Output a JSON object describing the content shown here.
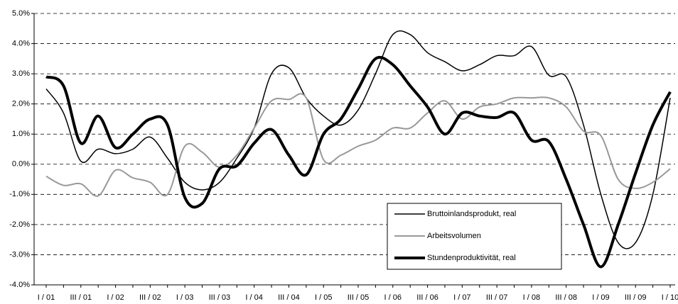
{
  "chart_data": {
    "type": "line",
    "categories": [
      "I / 01",
      null,
      "III / 01",
      null,
      "I / 02",
      null,
      "III / 02",
      null,
      "I / 03",
      null,
      "III / 03",
      null,
      "I / 04",
      null,
      "III / 04",
      null,
      "I / 05",
      null,
      "III / 05",
      null,
      "I / 06",
      null,
      "III / 06",
      null,
      "I / 07",
      null,
      "III / 07",
      null,
      "I / 08",
      null,
      "III / 08",
      null,
      "I / 09",
      null,
      "III / 09",
      null,
      "I / 10"
    ],
    "series": [
      {
        "name": "Bruttoinlandsprodukt, real",
        "color": "#000000",
        "width": 1.5,
        "values": [
          2.5,
          1.7,
          0.1,
          0.5,
          0.35,
          0.5,
          0.9,
          0.2,
          -0.6,
          -0.85,
          -0.6,
          0.2,
          1.2,
          3.0,
          3.2,
          2.2,
          1.6,
          1.3,
          1.8,
          3.0,
          4.3,
          4.3,
          3.7,
          3.4,
          3.1,
          3.3,
          3.6,
          3.6,
          3.9,
          2.95,
          2.9,
          1.3,
          -1.0,
          -2.6,
          -2.6,
          -1.0,
          2.2
        ]
      },
      {
        "name": "Arbeitsvolumen",
        "color": "#999999",
        "width": 2,
        "values": [
          -0.4,
          -0.7,
          -0.65,
          -1.05,
          -0.2,
          -0.45,
          -0.6,
          -1.0,
          0.6,
          0.4,
          -0.1,
          0.3,
          1.2,
          2.1,
          2.15,
          2.2,
          0.15,
          0.3,
          0.6,
          0.8,
          1.2,
          1.2,
          1.7,
          2.1,
          1.5,
          1.9,
          2.0,
          2.2,
          2.2,
          2.2,
          1.9,
          1.1,
          0.95,
          -0.5,
          -0.8,
          -0.6,
          -0.15
        ]
      },
      {
        "name": "Stundenproduktivität, real",
        "color": "#000000",
        "width": 4,
        "values": [
          2.9,
          2.6,
          0.7,
          1.6,
          0.55,
          1.0,
          1.5,
          1.3,
          -1.1,
          -1.3,
          -0.15,
          -0.05,
          0.7,
          1.15,
          0.3,
          -0.35,
          1.0,
          1.5,
          2.5,
          3.5,
          3.3,
          2.6,
          1.9,
          1.0,
          1.7,
          1.6,
          1.55,
          1.7,
          0.8,
          0.75,
          -0.5,
          -2.0,
          -3.4,
          -2.0,
          -0.3,
          1.3,
          2.4
        ]
      }
    ],
    "ylim": [
      -4,
      5
    ],
    "yticks": [
      {
        "value": -4,
        "label": "-4.0%"
      },
      {
        "value": -3,
        "label": "-3.0%"
      },
      {
        "value": -2,
        "label": "-2.0%"
      },
      {
        "value": -1,
        "label": "-1.0%"
      },
      {
        "value": 0,
        "label": "0.0%"
      },
      {
        "value": 1,
        "label": "1.0%"
      },
      {
        "value": 2,
        "label": "2.0%"
      },
      {
        "value": 3,
        "label": "3.0%"
      },
      {
        "value": 4,
        "label": "4.0%"
      },
      {
        "value": 5,
        "label": "5.0%"
      }
    ],
    "grid": true,
    "legend": "lower right"
  }
}
